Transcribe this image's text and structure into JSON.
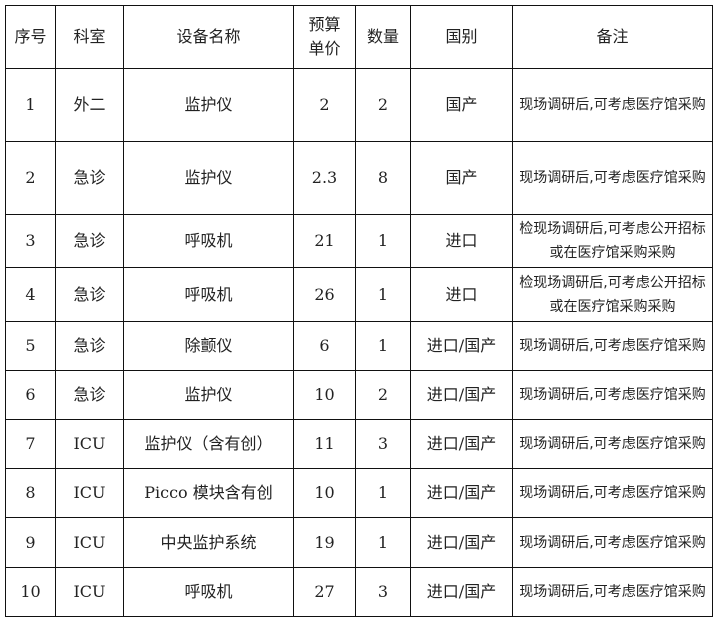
{
  "headers": [
    "序号",
    "科室",
    "设备名称",
    "预算单价",
    "数量",
    "国别",
    "备注"
  ],
  "rows": [
    [
      "1",
      "外二",
      "监护仪",
      "2",
      "2",
      "国产",
      "现场调研后,可考虑医疗馆采购"
    ],
    [
      "2",
      "急诊",
      "监护仪",
      "2.3",
      "8",
      "国产",
      "现场调研后,可考虑医疗馆采购"
    ],
    [
      "3",
      "急诊",
      "呼吸机",
      "21",
      "1",
      "进口",
      "检现场调研后,可考虑公开招标或在医疗馆采购采购"
    ],
    [
      "4",
      "急诊",
      "呼吸机",
      "26",
      "1",
      "进口",
      "检现场调研后,可考虑公开招标或在医疗馆采购采购"
    ],
    [
      "5",
      "急诊",
      "除颤仪",
      "6",
      "1",
      "进口/国产",
      "现场调研后,可考虑医疗馆采购"
    ],
    [
      "6",
      "急诊",
      "监护仪",
      "10",
      "2",
      "进口/国产",
      "现场调研后,可考虑医疗馆采购"
    ],
    [
      "7",
      "ICU",
      "监护仪（含有创）",
      "11",
      "3",
      "进口/国产",
      "现场调研后,可考虑医疗馆采购"
    ],
    [
      "8",
      "ICU",
      "Picco 模块含有创",
      "10",
      "1",
      "进口/国产",
      "现场调研后,可考虑医疗馆采购"
    ],
    [
      "9",
      "ICU",
      "中央监护系统",
      "19",
      "1",
      "进口/国产",
      "现场调研后,可考虑医疗馆采购"
    ],
    [
      "10",
      "ICU",
      "呼吸机",
      "27",
      "3",
      "进口/国产",
      "现场调研后,可考虑医疗馆采购"
    ]
  ]
}
